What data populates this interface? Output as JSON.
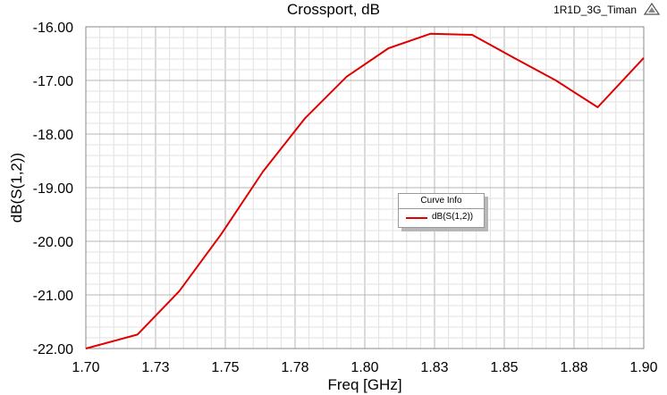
{
  "chart_data": {
    "type": "line",
    "title": "Crossport, dB",
    "xlabel": "Freq [GHz]",
    "ylabel": "dB(S(1,2))",
    "xlim": [
      1.7,
      1.9
    ],
    "ylim": [
      -22.0,
      -16.0
    ],
    "x_ticks": [
      1.7,
      1.725,
      1.75,
      1.775,
      1.8,
      1.825,
      1.85,
      1.875,
      1.9
    ],
    "x_tick_labels": [
      "1.70",
      "1.73",
      "1.75",
      "1.78",
      "1.80",
      "1.83",
      "1.85",
      "1.88",
      "1.90"
    ],
    "y_ticks": [
      -16,
      -17,
      -18,
      -19,
      -20,
      -21,
      -22
    ],
    "y_tick_labels": [
      "-16.00",
      "-17.00",
      "-18.00",
      "-19.00",
      "-20.00",
      "-21.00",
      "-22.00"
    ],
    "grid": true,
    "legend": {
      "title": "Curve Info",
      "placement": "center-right"
    },
    "series": [
      {
        "name": "dB(S(1,2))",
        "color": "#e00000",
        "x": [
          1.7,
          1.7185,
          1.7335,
          1.7485,
          1.7635,
          1.7785,
          1.7935,
          1.8085,
          1.8235,
          1.8385,
          1.8535,
          1.8685,
          1.8835,
          1.9
        ],
        "y": [
          -22.0,
          -21.74,
          -20.93,
          -19.87,
          -18.7,
          -17.71,
          -16.93,
          -16.4,
          -16.13,
          -16.15,
          -16.58,
          -17.0,
          -17.5,
          -16.58
        ]
      }
    ]
  },
  "header": {
    "project_label": "1R1D_3G_Timan"
  }
}
